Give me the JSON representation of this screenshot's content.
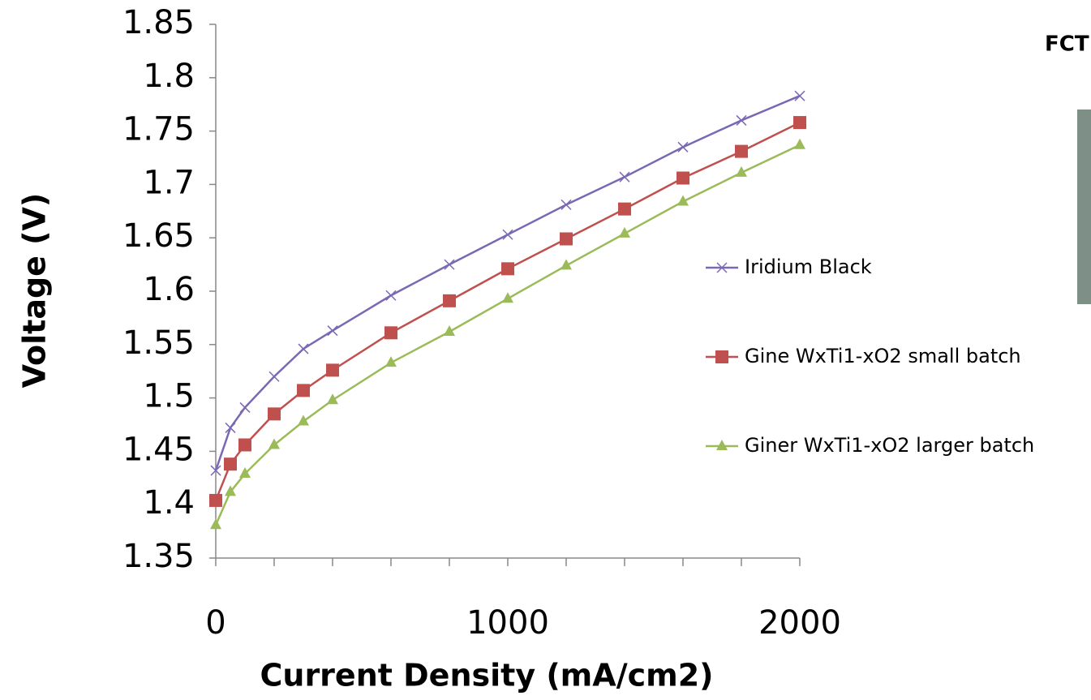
{
  "chart_data": {
    "type": "line",
    "x_label": "Current Density (mA/cm2)",
    "y_label": "Voltage (V)",
    "x": [
      0,
      50,
      100,
      200,
      300,
      400,
      600,
      800,
      1000,
      1200,
      1400,
      1600,
      1800,
      2000
    ],
    "series": [
      {
        "name": "Iridium Black",
        "color": "#7b68b5",
        "marker": "x",
        "values": [
          1.432,
          1.472,
          1.491,
          1.52,
          1.546,
          1.563,
          1.596,
          1.625,
          1.653,
          1.681,
          1.707,
          1.735,
          1.76,
          1.783
        ]
      },
      {
        "name": "Gine WxTi1-xO2  small batch",
        "color": "#c0504d",
        "marker": "square",
        "values": [
          1.404,
          1.438,
          1.456,
          1.485,
          1.507,
          1.526,
          1.561,
          1.591,
          1.621,
          1.649,
          1.677,
          1.706,
          1.731,
          1.758
        ]
      },
      {
        "name": "Giner  WxTi1-xO2  larger batch",
        "color": "#9bbb59",
        "marker": "triangle",
        "values": [
          1.381,
          1.412,
          1.429,
          1.456,
          1.478,
          1.498,
          1.533,
          1.562,
          1.593,
          1.624,
          1.654,
          1.684,
          1.711,
          1.737
        ]
      }
    ],
    "xlim": [
      0,
      2000
    ],
    "xticks": [
      0,
      1000,
      2000
    ],
    "xminorticks": [
      200,
      400,
      600,
      800,
      1200,
      1400,
      1600,
      1800
    ],
    "ylim": [
      1.35,
      1.85
    ],
    "yticks": [
      1.35,
      1.4,
      1.45,
      1.5,
      1.55,
      1.6,
      1.65,
      1.7,
      1.75,
      1.8,
      1.85
    ],
    "legend": "right",
    "grid": false
  },
  "side_text": "FCT"
}
